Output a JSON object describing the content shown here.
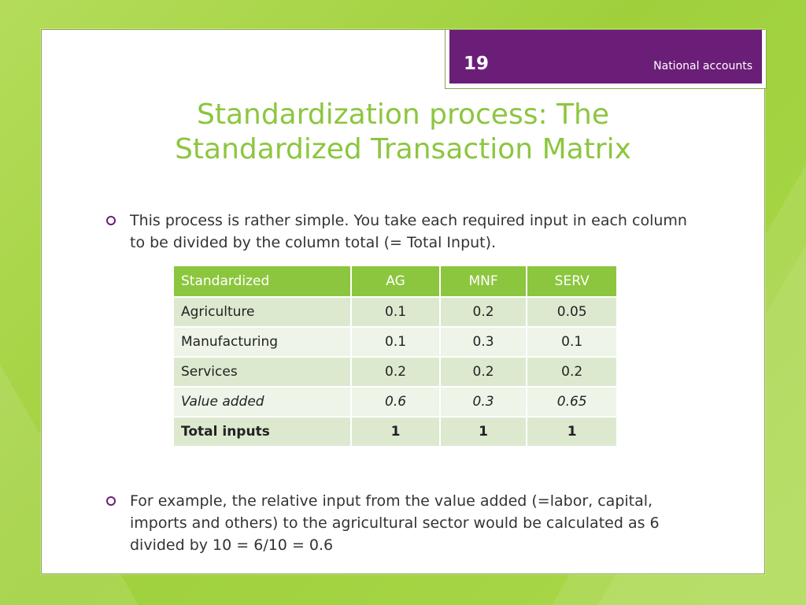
{
  "header": {
    "slide_number": "19",
    "section": "National accounts"
  },
  "title": {
    "line1": "Standardization process: The",
    "line2": "Standardized Transaction Matrix"
  },
  "bullets": [
    "This process is rather simple. You take each required input in each column to be divided by the column total (= Total Input).",
    "For example, the relative input from the value added (=labor, capital, imports and others) to the agricultural sector would be calculated as 6 divided by 10 = 6/10 = 0.6"
  ],
  "table": {
    "headers": [
      "Standardized",
      "AG",
      "MNF",
      "SERV"
    ],
    "rows": [
      [
        "Agriculture",
        "0.1",
        "0.2",
        "0.05"
      ],
      [
        "Manufacturing",
        "0.1",
        "0.3",
        "0.1"
      ],
      [
        "Services",
        "0.2",
        "0.2",
        "0.2"
      ],
      [
        "Value added",
        "0.6",
        "0.3",
        "0.65"
      ],
      [
        "Total inputs",
        "1",
        "1",
        "1"
      ]
    ]
  },
  "colors": {
    "accent_green": "#8cc63f",
    "accent_purple": "#6b1e78"
  }
}
